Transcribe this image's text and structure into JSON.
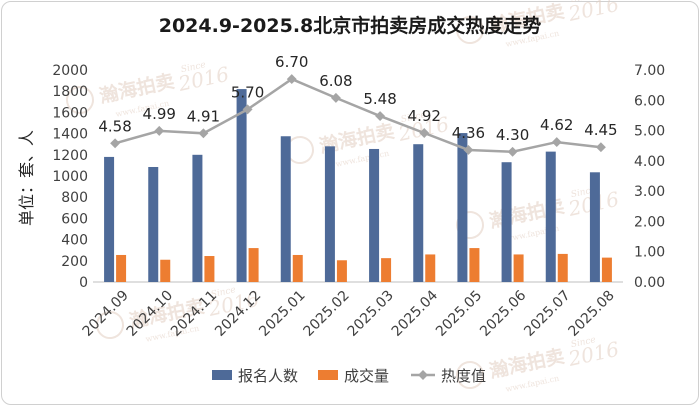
{
  "chart_data": {
    "type": "bar",
    "title": "2024.9-2025.8北京市拍卖房成交热度走势",
    "ylabel": "单位：套、人",
    "categories": [
      "2024.09",
      "2024.10",
      "2024.11",
      "2024.12",
      "2025.01",
      "2025.02",
      "2025.03",
      "2025.04",
      "2025.05",
      "2025.06",
      "2025.07",
      "2025.08"
    ],
    "ylim": [
      0,
      2000
    ],
    "y2lim": [
      0,
      7
    ],
    "yticks": [
      "0",
      "200",
      "400",
      "600",
      "800",
      "1000",
      "1200",
      "1400",
      "1600",
      "1800",
      "2000"
    ],
    "y2ticks": [
      "0.00",
      "1.00",
      "2.00",
      "3.00",
      "4.00",
      "5.00",
      "6.00",
      "7.00"
    ],
    "grid": false,
    "legend_position": "bottom",
    "series": [
      {
        "name": "报名人数",
        "type": "bar",
        "axis": "left",
        "color": "#4e6a98",
        "values": [
          1180,
          1085,
          1200,
          1820,
          1375,
          1280,
          1255,
          1300,
          1405,
          1130,
          1230,
          1035
        ]
      },
      {
        "name": "成交量",
        "type": "bar",
        "axis": "left",
        "color": "#ed7d31",
        "values": [
          255,
          210,
          245,
          320,
          255,
          205,
          225,
          260,
          320,
          260,
          265,
          230
        ]
      },
      {
        "name": "热度值",
        "type": "line",
        "axis": "right",
        "color": "#a5a5a5",
        "values": [
          4.58,
          4.99,
          4.91,
          5.7,
          6.7,
          6.08,
          5.48,
          4.92,
          4.36,
          4.3,
          4.62,
          4.45
        ],
        "labels": [
          "4.58",
          "4.99",
          "4.91",
          "5.70",
          "6.70",
          "6.08",
          "5.48",
          "4.92",
          "4.36",
          "4.30",
          "4.62",
          "4.45"
        ]
      }
    ]
  },
  "watermark": {
    "brand": "瀚海拍卖",
    "since": "Since",
    "year": "2016",
    "url": "www.fapai.cn"
  }
}
